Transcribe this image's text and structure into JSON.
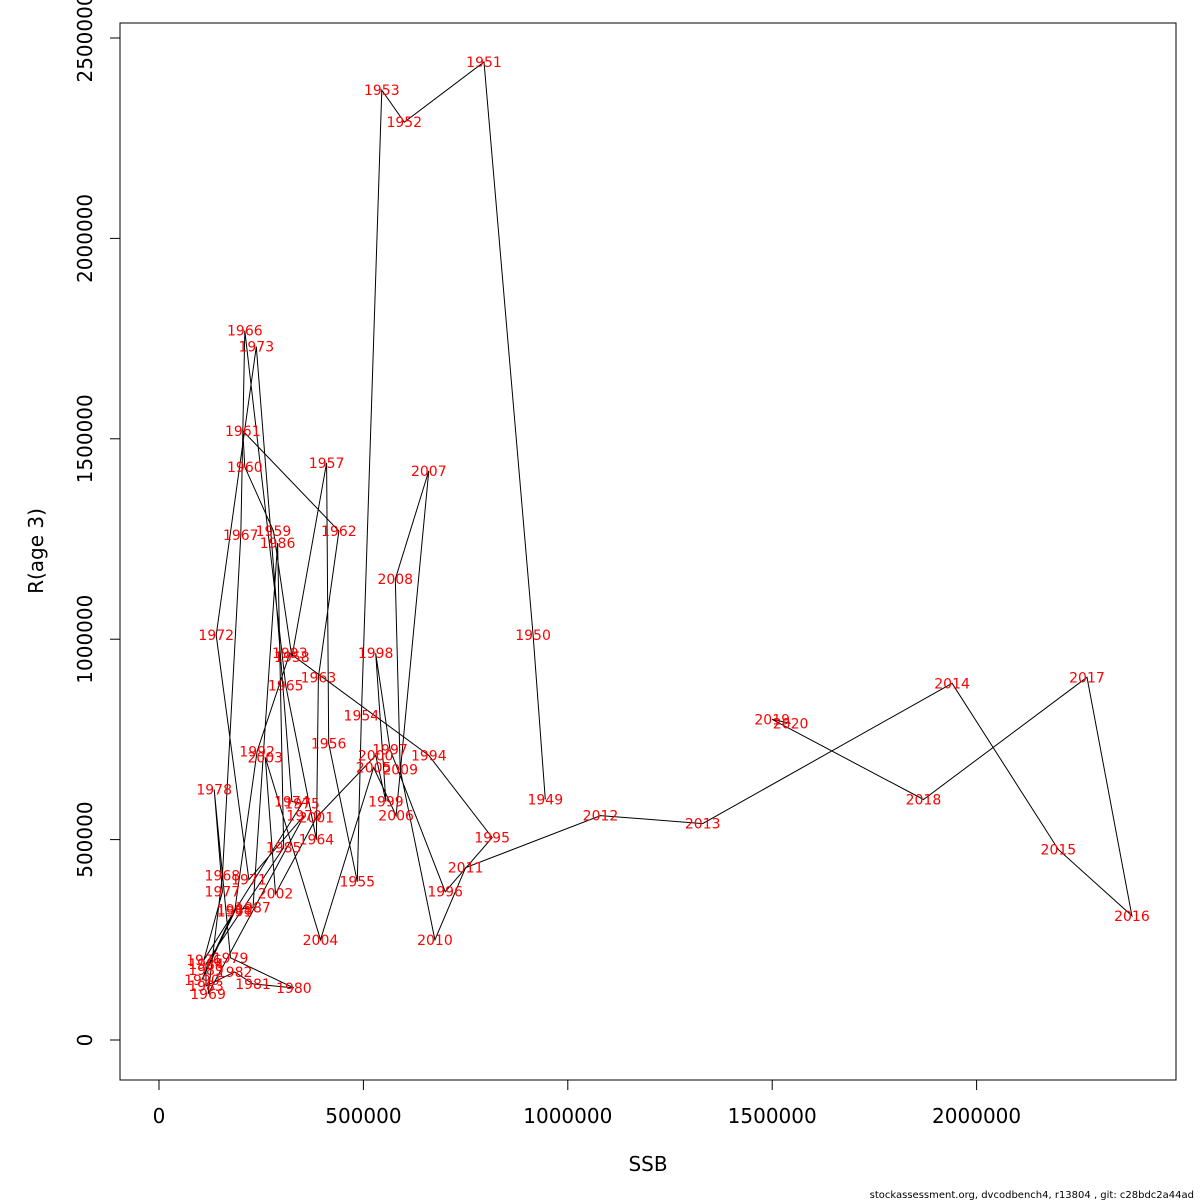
{
  "footer": "stockassessment.org, dvcodbench4, r13804 , git: c28bdc2a44ad",
  "colors": {
    "labels": "#ff0000",
    "line": "#000000",
    "axes": "#000000"
  },
  "chart_data": {
    "type": "line",
    "title": "",
    "xlabel": "SSB",
    "ylabel": "R(age 3)",
    "xlim": [
      0,
      2400000
    ],
    "ylim": [
      0,
      2500000
    ],
    "x_ticks": [
      0,
      500000,
      1000000,
      1500000,
      2000000
    ],
    "x_tick_labels": [
      "0",
      "500000",
      "1000000",
      "1500000",
      "2000000"
    ],
    "y_ticks": [
      0,
      500000,
      1000000,
      1500000,
      2000000,
      2500000
    ],
    "y_tick_labels": [
      "0",
      "500000",
      "1000000",
      "1500000",
      "2000000",
      "2500000"
    ],
    "grid": false,
    "legend": "none",
    "series": [
      {
        "points": [
          {
            "label": "1949",
            "x": 945000,
            "y": 600000
          },
          {
            "label": "1950",
            "x": 915000,
            "y": 1010000
          },
          {
            "label": "1951",
            "x": 795000,
            "y": 2440000
          },
          {
            "label": "1952",
            "x": 600000,
            "y": 2290000
          },
          {
            "label": "1953",
            "x": 545000,
            "y": 2370000
          },
          {
            "label": "1954",
            "x": 495000,
            "y": 810000
          },
          {
            "label": "1955",
            "x": 485000,
            "y": 395000
          },
          {
            "label": "1956",
            "x": 415000,
            "y": 740000
          },
          {
            "label": "1957",
            "x": 410000,
            "y": 1440000
          },
          {
            "label": "1958",
            "x": 325000,
            "y": 955000
          },
          {
            "label": "1959",
            "x": 280000,
            "y": 1270000
          },
          {
            "label": "1960",
            "x": 210000,
            "y": 1430000
          },
          {
            "label": "1961",
            "x": 205000,
            "y": 1520000
          },
          {
            "label": "1962",
            "x": 440000,
            "y": 1270000
          },
          {
            "label": "1963",
            "x": 390000,
            "y": 905000
          },
          {
            "label": "1964",
            "x": 385000,
            "y": 500000
          },
          {
            "label": "1965",
            "x": 310000,
            "y": 885000
          },
          {
            "label": "1966",
            "x": 210000,
            "y": 1770000
          },
          {
            "label": "1967",
            "x": 200000,
            "y": 1260000
          },
          {
            "label": "1968",
            "x": 155000,
            "y": 410000
          },
          {
            "label": "1969",
            "x": 120000,
            "y": 115000
          },
          {
            "label": "1970",
            "x": 355000,
            "y": 560000
          },
          {
            "label": "1971",
            "x": 220000,
            "y": 400000
          },
          {
            "label": "1972",
            "x": 140000,
            "y": 1010000
          },
          {
            "label": "1973",
            "x": 238000,
            "y": 1730000
          },
          {
            "label": "1974",
            "x": 325000,
            "y": 595000
          },
          {
            "label": "1975",
            "x": 350000,
            "y": 590000
          },
          {
            "label": "1976",
            "x": 110000,
            "y": 200000
          },
          {
            "label": "1977",
            "x": 155000,
            "y": 370000
          },
          {
            "label": "1978",
            "x": 135000,
            "y": 625000
          },
          {
            "label": "1979",
            "x": 175000,
            "y": 205000
          },
          {
            "label": "1980",
            "x": 330000,
            "y": 130000
          },
          {
            "label": "1981",
            "x": 230000,
            "y": 140000
          },
          {
            "label": "1982",
            "x": 185000,
            "y": 170000
          },
          {
            "label": "1983",
            "x": 115000,
            "y": 135000
          },
          {
            "label": "1984",
            "x": 115000,
            "y": 190000
          },
          {
            "label": "1985",
            "x": 305000,
            "y": 480000
          },
          {
            "label": "1986",
            "x": 290000,
            "y": 1240000
          },
          {
            "label": "1987",
            "x": 230000,
            "y": 330000
          },
          {
            "label": "1988",
            "x": 185000,
            "y": 325000
          },
          {
            "label": "1989",
            "x": 115000,
            "y": 175000
          },
          {
            "label": "1990",
            "x": 105000,
            "y": 150000
          },
          {
            "label": "1991",
            "x": 185000,
            "y": 320000
          },
          {
            "label": "1992",
            "x": 240000,
            "y": 720000
          },
          {
            "label": "1993",
            "x": 320000,
            "y": 965000
          },
          {
            "label": "1994",
            "x": 660000,
            "y": 710000
          },
          {
            "label": "1995",
            "x": 815000,
            "y": 505000
          },
          {
            "label": "1996",
            "x": 700000,
            "y": 370000
          },
          {
            "label": "1997",
            "x": 565000,
            "y": 725000
          },
          {
            "label": "1998",
            "x": 530000,
            "y": 965000
          },
          {
            "label": "1999",
            "x": 555000,
            "y": 595000
          },
          {
            "label": "2000",
            "x": 530000,
            "y": 710000
          },
          {
            "label": "2001",
            "x": 385000,
            "y": 555000
          },
          {
            "label": "2002",
            "x": 285000,
            "y": 365000
          },
          {
            "label": "2003",
            "x": 260000,
            "y": 705000
          },
          {
            "label": "2004",
            "x": 395000,
            "y": 250000
          },
          {
            "label": "2005",
            "x": 525000,
            "y": 680000
          },
          {
            "label": "2006",
            "x": 580000,
            "y": 560000
          },
          {
            "label": "2007",
            "x": 660000,
            "y": 1420000
          },
          {
            "label": "2008",
            "x": 578000,
            "y": 1150000
          },
          {
            "label": "2009",
            "x": 590000,
            "y": 675000
          },
          {
            "label": "2010",
            "x": 675000,
            "y": 250000
          },
          {
            "label": "2011",
            "x": 750000,
            "y": 430000
          },
          {
            "label": "2012",
            "x": 1080000,
            "y": 560000
          },
          {
            "label": "2013",
            "x": 1330000,
            "y": 540000
          },
          {
            "label": "2014",
            "x": 1940000,
            "y": 890000
          },
          {
            "label": "2015",
            "x": 2200000,
            "y": 475000
          },
          {
            "label": "2016",
            "x": 2380000,
            "y": 310000
          },
          {
            "label": "2017",
            "x": 2270000,
            "y": 905000
          },
          {
            "label": "2018",
            "x": 1870000,
            "y": 600000
          },
          {
            "label": "2019",
            "x": 1500000,
            "y": 800000
          },
          {
            "label": "2020",
            "x": 1545000,
            "y": 790000
          }
        ]
      }
    ]
  }
}
